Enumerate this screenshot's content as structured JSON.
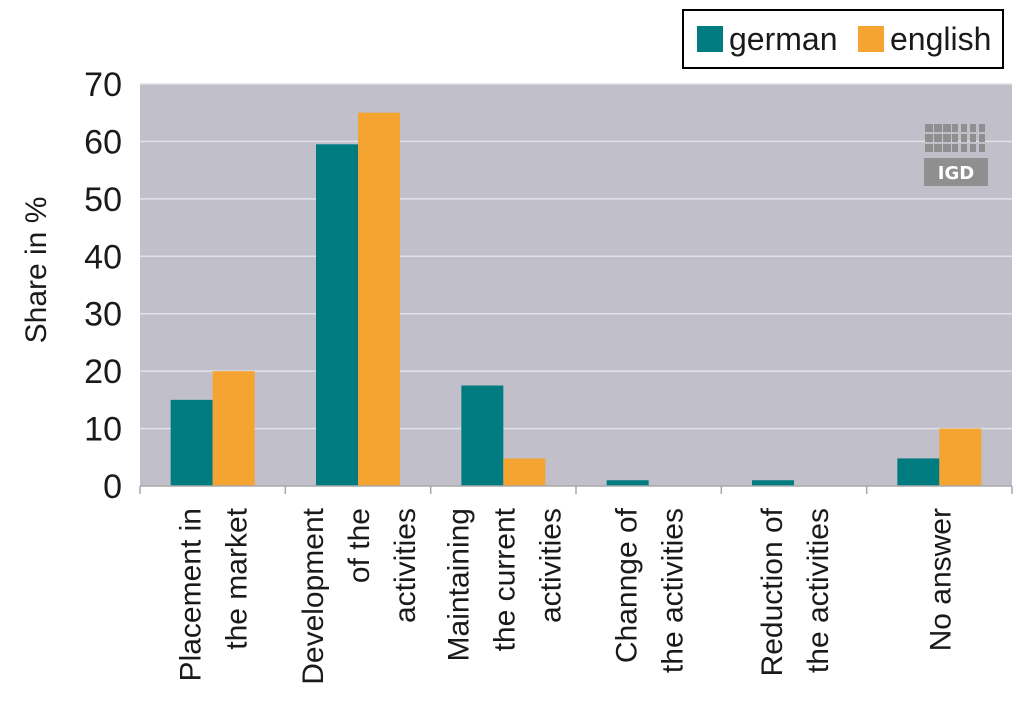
{
  "chart_data": {
    "type": "bar",
    "categories": [
      [
        "Placement in",
        "the market"
      ],
      [
        "Development",
        "of the",
        "activities"
      ],
      [
        "Maintaining",
        "the current",
        "activities"
      ],
      [
        "Channge of",
        "the activities"
      ],
      [
        "Reduction of",
        "the activities"
      ],
      [
        "No answer"
      ]
    ],
    "series": [
      {
        "name": "german",
        "color": "#007c80",
        "values": [
          15,
          59.5,
          17.5,
          1,
          1,
          4.8
        ]
      },
      {
        "name": "english",
        "color": "#f5a331",
        "values": [
          20,
          65,
          4.8,
          0,
          0,
          10
        ]
      }
    ],
    "ylabel": "Share in %",
    "ylim": [
      0,
      70
    ],
    "yticks": [
      0,
      10,
      20,
      30,
      40,
      50,
      60,
      70
    ],
    "grid": true,
    "legend": "top-right",
    "plot_background": "#c0bfca",
    "logo": {
      "text": "IGD",
      "color": "#8f8f8f"
    }
  }
}
